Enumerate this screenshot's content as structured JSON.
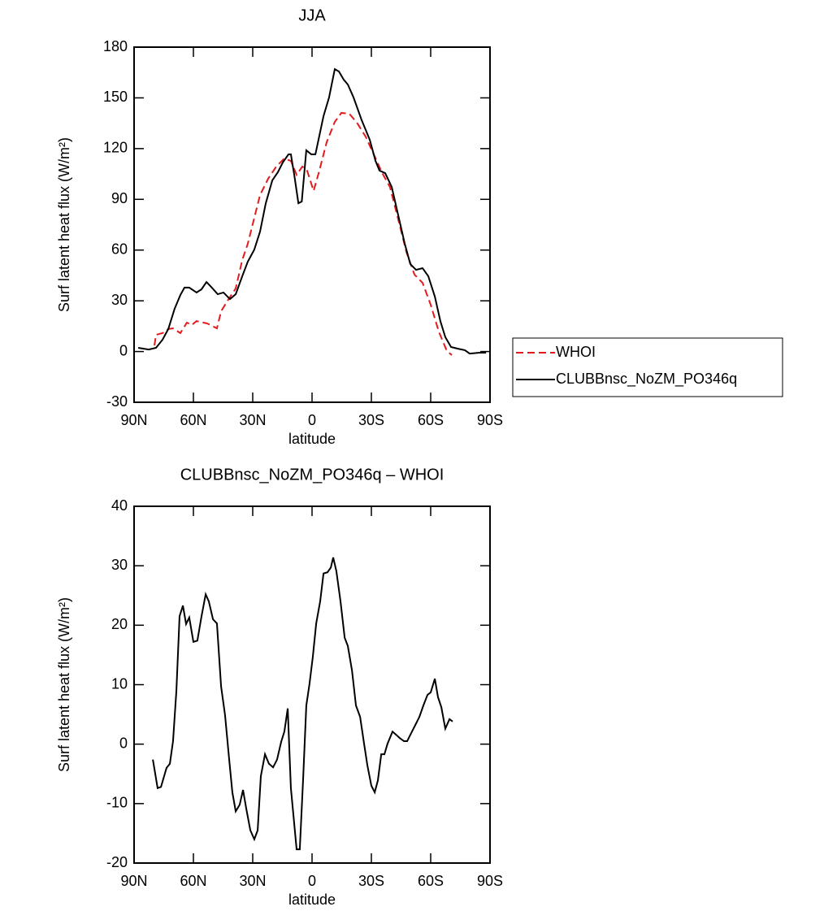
{
  "chart_data": [
    {
      "type": "line",
      "title": "JJA",
      "x_label": "latitude",
      "y_label": "Surf latent heat flux (W/m²)",
      "xlim": [
        90,
        -90
      ],
      "xticks": [
        {
          "value": 90,
          "label": "90N"
        },
        {
          "value": 60,
          "label": "60N"
        },
        {
          "value": 30,
          "label": "30N"
        },
        0,
        {
          "value": -30,
          "label": "30S"
        },
        {
          "value": -60,
          "label": "60S"
        },
        {
          "value": -90,
          "label": "90S"
        }
      ],
      "ylim": [
        -30,
        180
      ],
      "yticks": [
        -30,
        0,
        30,
        60,
        90,
        120,
        150,
        180
      ],
      "legend": "right",
      "series": [
        {
          "name": "WHOI",
          "color": "#e41a1c",
          "linestyle": "dashed",
          "x": [
            79.7,
            78.9,
            75.6,
            72.7,
            70.3,
            66.6,
            63.3,
            60.8,
            58.4,
            53.0,
            48.1,
            46.0,
            42.7,
            38.6,
            35.3,
            32.5,
            29.2,
            26.3,
            22.2,
            18.1,
            14.0,
            10.7,
            7.8,
            4.9,
            2.5,
            -0.8,
            -3.7,
            -7.4,
            -11.5,
            -14.8,
            -18.9,
            -23.0,
            -27.1,
            -31.2,
            -35.3,
            -39.4,
            -43.6,
            -47.7,
            -51.8,
            -55.9,
            -60.0,
            -64.1,
            -68.2,
            -70.7
          ],
          "values": [
            3.6,
            9.9,
            10.9,
            13.3,
            13.7,
            10.9,
            17.1,
            15.7,
            18.0,
            16.6,
            13.7,
            23.8,
            30.1,
            37.3,
            54.1,
            63.7,
            79.1,
            92.5,
            102.2,
            109.4,
            114.2,
            112.7,
            104.5,
            109.4,
            107.0,
            95.0,
            107.0,
            123.8,
            135.8,
            141.1,
            140.6,
            134.8,
            127.1,
            116.6,
            106.0,
            97.3,
            78.1,
            58.9,
            45.5,
            40.6,
            27.7,
            11.8,
            0.3,
            -2.1
          ]
        },
        {
          "name": "CLUBBnsc_NoZM_PO346q",
          "color": "#000000",
          "linestyle": "solid",
          "x": [
            87.9,
            82.6,
            78.9,
            75.6,
            72.7,
            69.5,
            66.6,
            64.5,
            62.1,
            58.4,
            55.9,
            53.4,
            51.0,
            47.7,
            44.8,
            41.5,
            38.6,
            35.3,
            32.5,
            29.2,
            26.3,
            23.4,
            20.1,
            17.3,
            14.8,
            11.9,
            10.7,
            9.0,
            6.9,
            5.2,
            2.9,
            0.4,
            -1.7,
            -5.8,
            -8.6,
            -11.5,
            -13.6,
            -16.0,
            -18.1,
            -21.0,
            -25.1,
            -29.2,
            -32.1,
            -34.1,
            -37.0,
            -40.3,
            -43.6,
            -46.9,
            -49.7,
            -52.6,
            -55.9,
            -58.8,
            -62.1,
            -64.9,
            -67.4,
            -70.3,
            -73.6,
            -77.3,
            -79.7,
            -84.7,
            -88.0
          ],
          "values": [
            2.2,
            1.2,
            2.2,
            7.0,
            13.3,
            25.3,
            33.4,
            37.8,
            37.8,
            34.9,
            36.8,
            41.1,
            38.2,
            33.9,
            34.9,
            31.0,
            33.9,
            44.5,
            53.1,
            60.3,
            70.9,
            87.7,
            101.2,
            106.0,
            111.8,
            116.6,
            116.6,
            104.5,
            87.7,
            88.7,
            119.0,
            116.6,
            116.6,
            139.2,
            150.2,
            167.0,
            165.6,
            160.8,
            157.9,
            150.2,
            136.8,
            125.2,
            112.7,
            107.0,
            105.5,
            97.3,
            80.5,
            63.7,
            51.7,
            48.3,
            49.3,
            44.5,
            32.5,
            18.0,
            8.5,
            2.7,
            1.7,
            0.8,
            -1.2,
            -0.7,
            -0.7
          ]
        }
      ]
    },
    {
      "type": "line",
      "title": "CLUBBnsc_NoZM_PO346q – WHOI",
      "x_label": "latitude",
      "y_label": "Surf latent heat flux (W/m²)",
      "xlim": [
        90,
        -90
      ],
      "xticks": [
        {
          "value": 90,
          "label": "90N"
        },
        {
          "value": 60,
          "label": "60N"
        },
        {
          "value": 30,
          "label": "30N"
        },
        0,
        {
          "value": -30,
          "label": "30S"
        },
        {
          "value": -60,
          "label": "60S"
        },
        {
          "value": -90,
          "label": "90S"
        }
      ],
      "ylim": [
        -20,
        40
      ],
      "yticks": [
        -20,
        -10,
        0,
        10,
        20,
        30,
        40
      ],
      "series": [
        {
          "color": "#000000",
          "linestyle": "solid",
          "x": [
            80.5,
            78.1,
            76.4,
            73.6,
            71.9,
            70.3,
            68.6,
            67.0,
            65.3,
            63.7,
            62.1,
            60.0,
            58.0,
            55.9,
            53.8,
            52.2,
            50.1,
            48.1,
            46.0,
            44.0,
            41.9,
            40.3,
            38.6,
            36.6,
            34.9,
            33.3,
            31.2,
            29.2,
            27.5,
            25.9,
            23.8,
            21.8,
            19.7,
            17.7,
            15.6,
            14.0,
            12.3,
            10.7,
            7.8,
            6.2,
            4.5,
            2.9,
            1.3,
            -0.4,
            -2.1,
            -4.1,
            -5.8,
            -7.8,
            -9.5,
            -10.7,
            -12.3,
            -14.4,
            -16.5,
            -18.1,
            -20.2,
            -22.2,
            -24.3,
            -26.3,
            -28.0,
            -30.0,
            -31.7,
            -33.3,
            -35.0,
            -36.6,
            -38.2,
            -40.7,
            -42.8,
            -44.4,
            -46.5,
            -48.1,
            -50.2,
            -52.2,
            -54.3,
            -56.3,
            -58.4,
            -60.0,
            -62.1,
            -63.7,
            -65.4,
            -67.4,
            -69.5,
            -71.1
          ],
          "values": [
            -2.6,
            -7.4,
            -7.2,
            -4.0,
            -3.3,
            0.5,
            9.0,
            21.5,
            23.3,
            20.2,
            21.3,
            17.2,
            17.4,
            21.5,
            25.2,
            24.0,
            21.0,
            20.3,
            9.7,
            4.9,
            -2.6,
            -8.1,
            -11.3,
            -10.2,
            -7.7,
            -10.8,
            -14.5,
            -16.0,
            -14.5,
            -5.4,
            -1.7,
            -3.3,
            -3.9,
            -2.6,
            0.4,
            2.1,
            6.0,
            -7.4,
            -17.7,
            -17.7,
            -5.8,
            6.5,
            10.1,
            14.7,
            20.3,
            24.0,
            28.7,
            28.9,
            29.7,
            31.4,
            29.1,
            24.0,
            17.9,
            16.5,
            12.4,
            6.5,
            4.6,
            0.1,
            -3.6,
            -7.0,
            -8.1,
            -6.1,
            -1.7,
            -1.7,
            0.1,
            2.1,
            1.5,
            1.0,
            0.5,
            0.5,
            1.9,
            3.2,
            4.6,
            6.5,
            8.3,
            8.7,
            11.0,
            7.9,
            6.2,
            2.6,
            4.2,
            3.8
          ]
        }
      ]
    }
  ]
}
